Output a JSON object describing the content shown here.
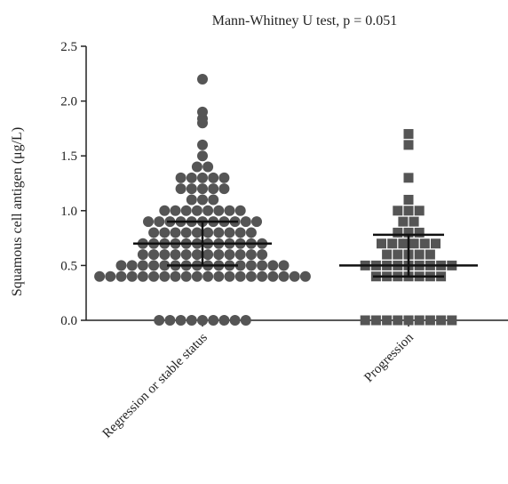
{
  "chart_data": {
    "type": "scatter",
    "title": "Mann-Whitney U test, p = 0.051",
    "ylabel": "Squamous cell antigen (μg/L)",
    "xlabel": "",
    "ylim": [
      0,
      2.5
    ],
    "yticks": [
      "0.0",
      "0.5",
      "1.0",
      "1.5",
      "2.0",
      "2.5"
    ],
    "grid": false,
    "legend": "none",
    "marker_color": "#555555",
    "groups": [
      {
        "name": "Regression or stable status",
        "marker": "circle",
        "median": 0.7,
        "q1": 0.5,
        "q3": 0.9,
        "values": [
          0,
          0,
          0,
          0,
          0,
          0,
          0,
          0,
          0,
          0.4,
          0.4,
          0.4,
          0.4,
          0.4,
          0.4,
          0.4,
          0.4,
          0.4,
          0.4,
          0.4,
          0.4,
          0.4,
          0.4,
          0.4,
          0.4,
          0.4,
          0.4,
          0.4,
          0.4,
          0.5,
          0.5,
          0.5,
          0.5,
          0.5,
          0.5,
          0.5,
          0.5,
          0.5,
          0.5,
          0.5,
          0.5,
          0.5,
          0.5,
          0.5,
          0.5,
          0.6,
          0.6,
          0.6,
          0.6,
          0.6,
          0.6,
          0.6,
          0.6,
          0.6,
          0.6,
          0.6,
          0.6,
          0.7,
          0.7,
          0.7,
          0.7,
          0.7,
          0.7,
          0.7,
          0.7,
          0.7,
          0.7,
          0.7,
          0.7,
          0.8,
          0.8,
          0.8,
          0.8,
          0.8,
          0.8,
          0.8,
          0.8,
          0.8,
          0.8,
          0.9,
          0.9,
          0.9,
          0.9,
          0.9,
          0.9,
          0.9,
          0.9,
          0.9,
          0.9,
          0.9,
          1.0,
          1.0,
          1.0,
          1.0,
          1.0,
          1.0,
          1.0,
          1.0,
          1.1,
          1.1,
          1.1,
          1.2,
          1.2,
          1.2,
          1.2,
          1.2,
          1.3,
          1.3,
          1.3,
          1.3,
          1.3,
          1.4,
          1.4,
          1.5,
          1.6,
          1.8,
          1.84,
          1.9,
          2.2
        ]
      },
      {
        "name": "Progression",
        "marker": "square",
        "median": 0.5,
        "q1": 0.4,
        "q3": 0.78,
        "values": [
          0,
          0,
          0,
          0,
          0,
          0,
          0,
          0,
          0,
          0.4,
          0.4,
          0.4,
          0.4,
          0.4,
          0.4,
          0.4,
          0.5,
          0.5,
          0.5,
          0.5,
          0.5,
          0.5,
          0.5,
          0.5,
          0.5,
          0.6,
          0.6,
          0.6,
          0.6,
          0.6,
          0.7,
          0.7,
          0.7,
          0.7,
          0.7,
          0.7,
          0.8,
          0.8,
          0.8,
          0.9,
          0.9,
          1.0,
          1.0,
          1.0,
          1.1,
          1.3,
          1.6,
          1.7
        ]
      }
    ]
  }
}
